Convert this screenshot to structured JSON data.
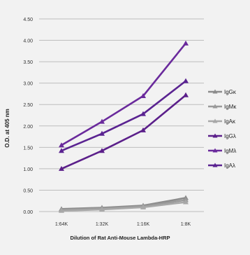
{
  "chart_data": {
    "type": "line",
    "title": "",
    "xlabel": "Dilution of Rat Anti-Mouse Lambda-HRP",
    "ylabel": "O.D. at 405 nm",
    "categories": [
      "1:64K",
      "1:32K",
      "1:16K",
      "1:8K"
    ],
    "ylim": [
      0,
      4.5
    ],
    "yticks": [
      "0.00",
      "0.50",
      "1.00",
      "1.50",
      "2.00",
      "2.50",
      "3.00",
      "3.50",
      "4.00",
      "4.50"
    ],
    "grid": true,
    "legend_position": "right",
    "series": [
      {
        "name": "IgGκ",
        "color": "#8c8c8c",
        "values": [
          0.06,
          0.09,
          0.14,
          0.32
        ]
      },
      {
        "name": "IgMκ",
        "color": "#9a9a9a",
        "values": [
          0.04,
          0.07,
          0.12,
          0.27
        ]
      },
      {
        "name": "IgAκ",
        "color": "#a8a8a8",
        "values": [
          0.02,
          0.05,
          0.1,
          0.22
        ]
      },
      {
        "name": "IgGλ",
        "color": "#5b1f8a",
        "values": [
          1.0,
          1.42,
          1.9,
          2.72
        ]
      },
      {
        "name": "IgMλ",
        "color": "#6a2a9c",
        "values": [
          1.55,
          2.1,
          2.7,
          3.93
        ]
      },
      {
        "name": "IgAλ",
        "color": "#5a2391",
        "values": [
          1.42,
          1.82,
          2.28,
          3.05
        ]
      }
    ]
  }
}
